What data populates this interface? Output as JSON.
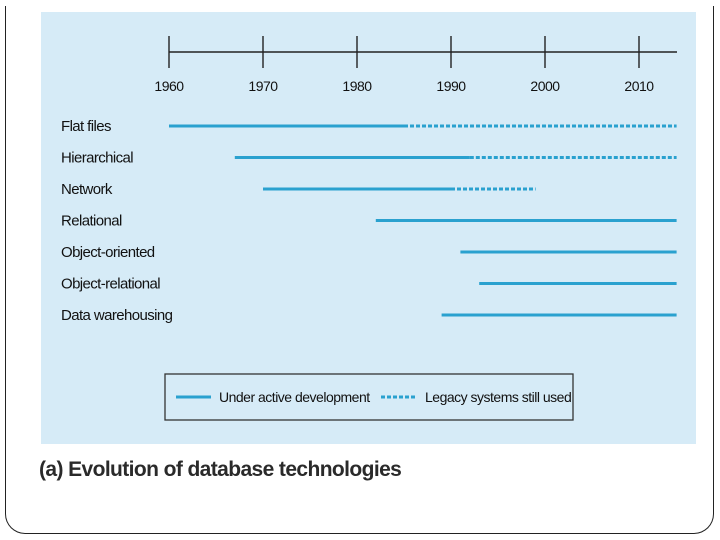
{
  "caption": "(a) Evolution of database technologies",
  "colors": {
    "panel": "#d6ebf7",
    "line": "#2aa1cf",
    "axis": "#222222"
  },
  "legend": {
    "active_label": "Under active development",
    "legacy_label": "Legacy systems still used"
  },
  "chart_data": {
    "type": "timeline",
    "x_ticks": [
      1960,
      1970,
      1980,
      1990,
      2000,
      2010
    ],
    "x_tick_labels": [
      "1960",
      "1970",
      "1980",
      "1990",
      "2000",
      "2010"
    ],
    "xlim": [
      1960,
      2014
    ],
    "rows": [
      {
        "label": "Flat files",
        "active": [
          1960,
          1985
        ],
        "legacy": [
          1985,
          2014
        ]
      },
      {
        "label": "Hierarchical",
        "active": [
          1967,
          1992
        ],
        "legacy": [
          1992,
          2014
        ]
      },
      {
        "label": "Network",
        "active": [
          1970,
          1990
        ],
        "legacy": [
          1990,
          1999
        ]
      },
      {
        "label": "Relational",
        "active": [
          1982,
          2014
        ],
        "legacy": null
      },
      {
        "label": "Object-oriented",
        "active": [
          1991,
          2014
        ],
        "legacy": null
      },
      {
        "label": "Object-relational",
        "active": [
          1993,
          2014
        ],
        "legacy": null
      },
      {
        "label": "Data warehousing",
        "active": [
          1989,
          2014
        ],
        "legacy": null
      }
    ]
  }
}
